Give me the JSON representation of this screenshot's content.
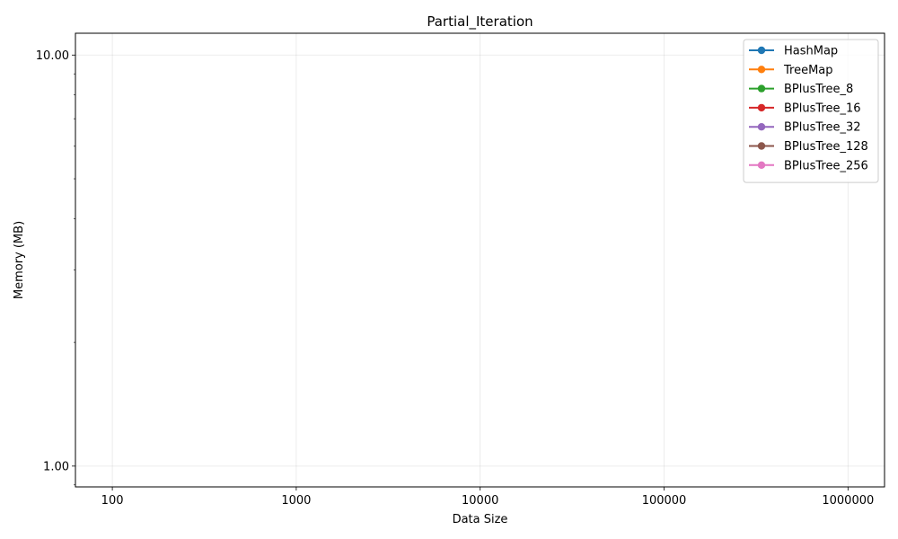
{
  "chart_data": {
    "type": "line",
    "title": "Partial_Iteration",
    "xlabel": "Data Size",
    "ylabel": "Memory (MB)",
    "x_scale": "log",
    "y_scale": "log",
    "x_ticks": [
      "100",
      "1000",
      "10000",
      "100000",
      "1000000"
    ],
    "x_tick_values": [
      100,
      1000,
      10000,
      100000,
      1000000
    ],
    "y_ticks": [
      "1.00",
      "10.00"
    ],
    "y_tick_values": [
      1,
      10
    ],
    "xlim": [
      63,
      1580000
    ],
    "ylim": [
      0.89,
      11.3
    ],
    "grid": true,
    "legend_position": "top-right",
    "series": [
      {
        "name": "HashMap",
        "color": "#1f77b4",
        "x": [],
        "values": []
      },
      {
        "name": "TreeMap",
        "color": "#ff7f0e",
        "x": [],
        "values": []
      },
      {
        "name": "BPlusTree_8",
        "color": "#2ca02c",
        "x": [],
        "values": []
      },
      {
        "name": "BPlusTree_16",
        "color": "#d62728",
        "x": [],
        "values": []
      },
      {
        "name": "BPlusTree_32",
        "color": "#9467bd",
        "x": [],
        "values": []
      },
      {
        "name": "BPlusTree_128",
        "color": "#8c564b",
        "x": [],
        "values": []
      },
      {
        "name": "BPlusTree_256",
        "color": "#e377c2",
        "x": [],
        "values": []
      }
    ]
  }
}
